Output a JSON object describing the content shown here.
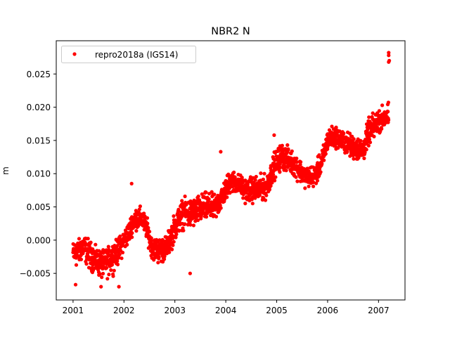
{
  "chart_data": {
    "type": "scatter",
    "title": "NBR2 N",
    "xlabel": "",
    "ylabel": "m",
    "xlim": [
      2000.67,
      2007.52
    ],
    "ylim": [
      -0.009,
      0.03
    ],
    "xticks": [
      2001,
      2002,
      2003,
      2004,
      2005,
      2006,
      2007
    ],
    "xtick_labels": [
      "2001",
      "2002",
      "2003",
      "2004",
      "2005",
      "2006",
      "2007"
    ],
    "yticks": [
      -0.005,
      0.0,
      0.005,
      0.01,
      0.015,
      0.02,
      0.025
    ],
    "ytick_labels": [
      "−0.005",
      "0.000",
      "0.005",
      "0.010",
      "0.015",
      "0.020",
      "0.025"
    ],
    "grid": false,
    "legend": {
      "placement": "upper-left",
      "entries": [
        "repro2018a (IGS14)"
      ]
    },
    "color": "#ff0000",
    "series": [
      {
        "name": "repro2018a (IGS14)",
        "columns": [
          "x",
          "y",
          "y_low",
          "y_high"
        ],
        "points": [
          [
            2001.0,
            -0.002,
            -0.005,
            0.0005
          ],
          [
            2001.1,
            -0.0015,
            -0.005,
            0.0005
          ],
          [
            2001.2,
            -0.001,
            -0.0035,
            0.002
          ],
          [
            2001.3,
            -0.002,
            -0.005,
            0.001
          ],
          [
            2001.45,
            -0.003,
            -0.006,
            -0.0005
          ],
          [
            2001.6,
            -0.0035,
            -0.007,
            -0.001
          ],
          [
            2001.75,
            -0.0025,
            -0.006,
            0.0
          ],
          [
            2001.9,
            -0.0012,
            -0.0045,
            0.001
          ],
          [
            2002.0,
            0.0,
            -0.0025,
            0.002
          ],
          [
            2002.1,
            0.0012,
            -0.001,
            0.0035
          ],
          [
            2002.2,
            0.003,
            0.001,
            0.006
          ],
          [
            2002.35,
            0.0033,
            0.001,
            0.0055
          ],
          [
            2002.45,
            0.0018,
            -0.0005,
            0.004
          ],
          [
            2002.55,
            -0.001,
            -0.0035,
            0.001
          ],
          [
            2002.7,
            -0.0015,
            -0.0045,
            0.001
          ],
          [
            2002.85,
            -0.001,
            -0.0035,
            0.0015
          ],
          [
            2003.0,
            0.002,
            -0.001,
            0.005
          ],
          [
            2003.15,
            0.004,
            0.001,
            0.007
          ],
          [
            2003.3,
            0.004,
            0.0005,
            0.007
          ],
          [
            2003.45,
            0.0045,
            0.0015,
            0.0075
          ],
          [
            2003.6,
            0.005,
            0.002,
            0.008
          ],
          [
            2003.8,
            0.005,
            0.002,
            0.0075
          ],
          [
            2003.95,
            0.0068,
            0.0045,
            0.0095
          ],
          [
            2004.1,
            0.009,
            0.0065,
            0.0115
          ],
          [
            2004.25,
            0.0085,
            0.006,
            0.0105
          ],
          [
            2004.4,
            0.0075,
            0.005,
            0.01
          ],
          [
            2004.6,
            0.0075,
            0.005,
            0.0105
          ],
          [
            2004.8,
            0.008,
            0.0055,
            0.0105
          ],
          [
            2004.95,
            0.011,
            0.0085,
            0.014
          ],
          [
            2005.1,
            0.0125,
            0.01,
            0.0155
          ],
          [
            2005.25,
            0.012,
            0.0095,
            0.0145
          ],
          [
            2005.4,
            0.011,
            0.0085,
            0.0135
          ],
          [
            2005.55,
            0.0095,
            0.0075,
            0.012
          ],
          [
            2005.75,
            0.0095,
            0.0075,
            0.012
          ],
          [
            2005.9,
            0.012,
            0.0095,
            0.0145
          ],
          [
            2006.0,
            0.015,
            0.013,
            0.0175
          ],
          [
            2006.15,
            0.0155,
            0.0135,
            0.018
          ],
          [
            2006.3,
            0.015,
            0.0125,
            0.017
          ],
          [
            2006.5,
            0.014,
            0.0115,
            0.0165
          ],
          [
            2006.7,
            0.0135,
            0.011,
            0.016
          ],
          [
            2006.8,
            0.016,
            0.0135,
            0.019
          ],
          [
            2007.0,
            0.018,
            0.0155,
            0.0205
          ],
          [
            2007.2,
            0.0185,
            0.0165,
            0.0215
          ]
        ],
        "outliers": [
          [
            2007.2,
            0.0282
          ],
          [
            2007.2,
            0.0278
          ],
          [
            2007.21,
            0.027
          ],
          [
            2007.2,
            0.0268
          ],
          [
            2002.15,
            0.0085
          ],
          [
            2003.3,
            -0.005
          ],
          [
            2001.55,
            -0.007
          ],
          [
            2001.9,
            -0.007
          ],
          [
            2001.05,
            -0.0067
          ],
          [
            2003.9,
            0.0133
          ],
          [
            2004.95,
            0.0158
          ]
        ]
      }
    ]
  }
}
